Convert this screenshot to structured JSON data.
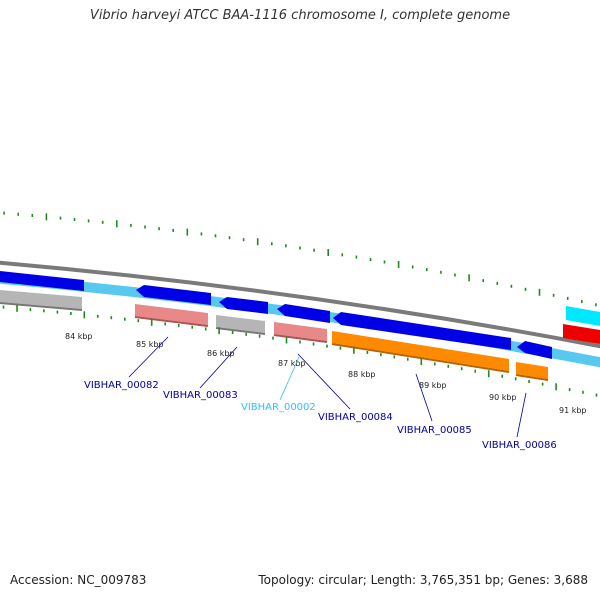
{
  "title": "Vibrio harveyi ATCC BAA-1116 chromosome I, complete genome",
  "footer": {
    "accession": "Accession: NC_009783",
    "summary": "Topology: circular; Length: 3,765,351 bp; Genes: 3,688"
  },
  "colors": {
    "backbone": "#7a7a7a",
    "cds_forward": "#0000e6",
    "cds_track": "#57c8ee",
    "gene_pink": "#e88888",
    "gene_grey": "#b5b5b5",
    "gene_orange": "#ff8a00",
    "gene_cyan": "#00e8ff",
    "gene_red": "#ee0000",
    "tick": "#1f8a1f",
    "label_dark": "#00009c",
    "label_light": "#2ec0ff"
  },
  "ticks": [
    "84 kbp",
    "85 kbp",
    "86 kbp",
    "87 kbp",
    "88 kbp",
    "89 kbp",
    "90 kbp",
    "91 kbp"
  ],
  "genes": [
    {
      "label": "VIBHAR_00082",
      "color": "label_dark"
    },
    {
      "label": "VIBHAR_00083",
      "color": "label_dark"
    },
    {
      "label": "VIBHAR_00002",
      "color": "label_light"
    },
    {
      "label": "VIBHAR_00084",
      "color": "label_dark"
    },
    {
      "label": "VIBHAR_00085",
      "color": "label_dark"
    },
    {
      "label": "VIBHAR_00086",
      "color": "label_dark"
    }
  ]
}
